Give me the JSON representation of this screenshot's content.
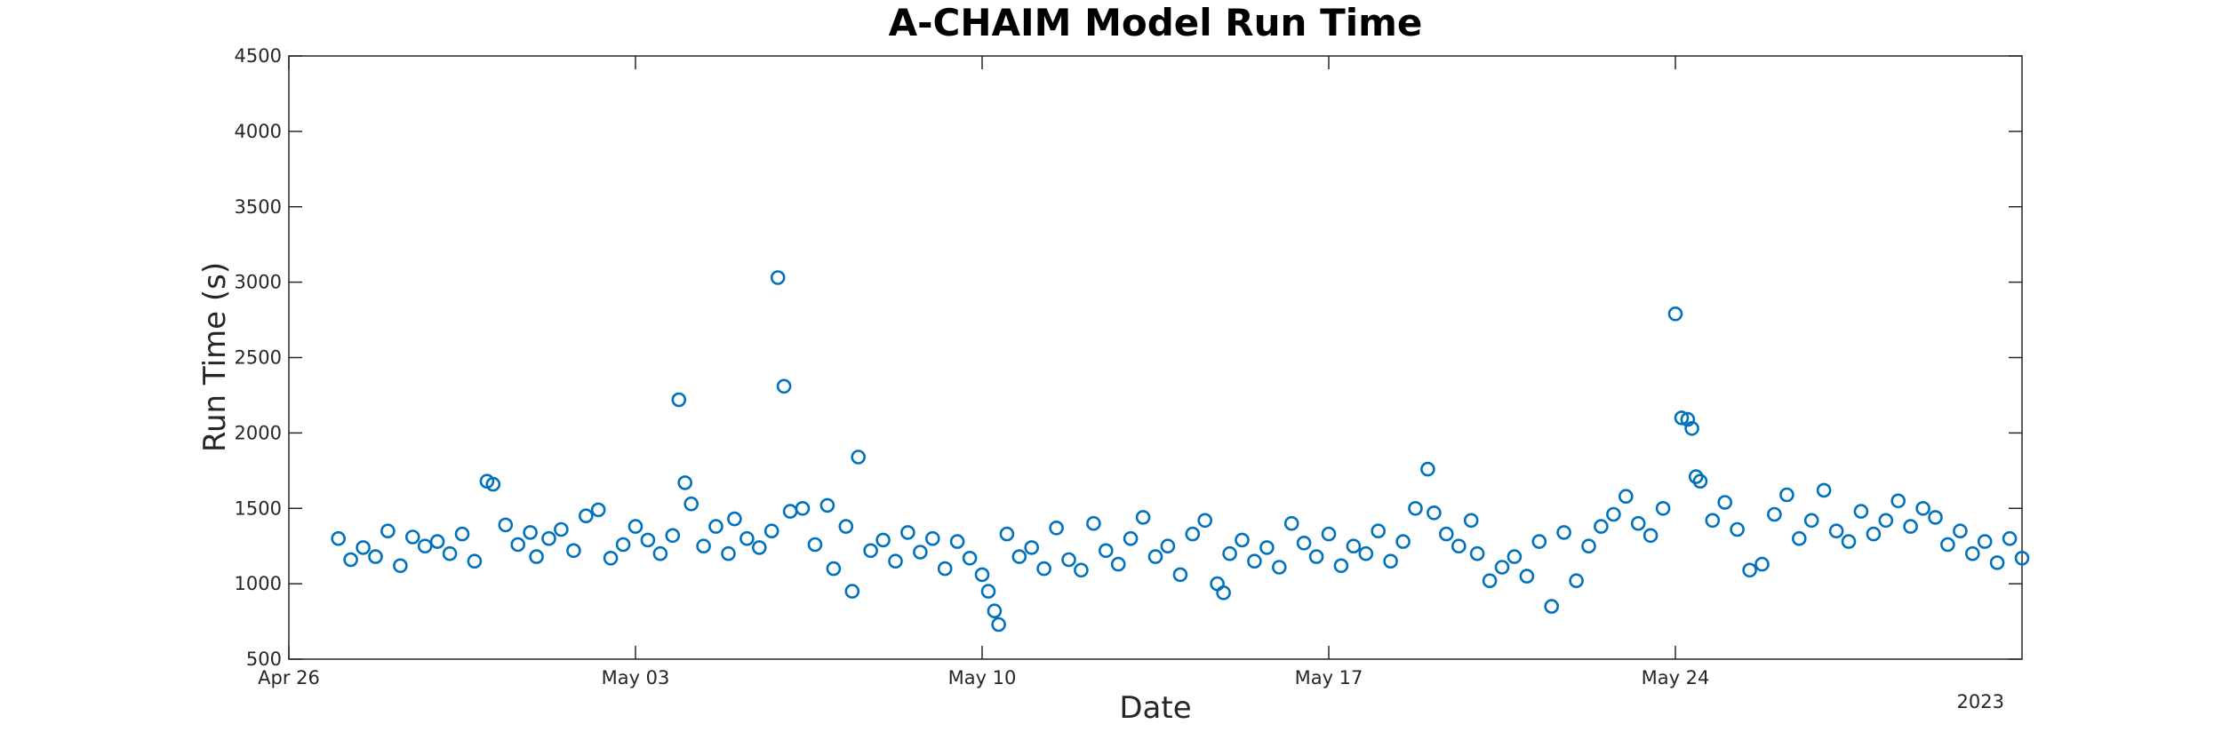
{
  "chart_data": {
    "type": "scatter",
    "title": "A-CHAIM Model Run Time",
    "xlabel": "Date",
    "ylabel": "Run Time (s)",
    "x_start": "2023-04-26",
    "x_end": "2023-05-31",
    "x_ticks": [
      "2023-04-26",
      "2023-05-03",
      "2023-05-10",
      "2023-05-17",
      "2023-05-24"
    ],
    "x_tick_labels": [
      "Apr 26",
      "May 03",
      "May 10",
      "May 17",
      "May 24"
    ],
    "year_label": "2023",
    "ylim": [
      500,
      4500
    ],
    "y_ticks": [
      500,
      1000,
      1500,
      2000,
      2500,
      3000,
      3500,
      4000,
      4500
    ],
    "y_tick_labels": [
      "500",
      "1000",
      "1500",
      "2000",
      "2500",
      "3000",
      "3500",
      "4000",
      "4500"
    ],
    "marker": "open circle",
    "color": "#0072BD",
    "grid": false,
    "series": [
      {
        "points": [
          [
            "2023-04-27 00:00",
            1300
          ],
          [
            "2023-04-27 06:00",
            1160
          ],
          [
            "2023-04-27 12:00",
            1240
          ],
          [
            "2023-04-27 18:00",
            1180
          ],
          [
            "2023-04-28 00:00",
            1350
          ],
          [
            "2023-04-28 06:00",
            1120
          ],
          [
            "2023-04-28 12:00",
            1310
          ],
          [
            "2023-04-28 18:00",
            1250
          ],
          [
            "2023-04-29 00:00",
            1280
          ],
          [
            "2023-04-29 06:00",
            1200
          ],
          [
            "2023-04-29 12:00",
            1330
          ],
          [
            "2023-04-29 18:00",
            1150
          ],
          [
            "2023-04-30 00:00",
            1680
          ],
          [
            "2023-04-30 03:00",
            1660
          ],
          [
            "2023-04-30 09:00",
            1390
          ],
          [
            "2023-04-30 15:00",
            1260
          ],
          [
            "2023-04-30 21:00",
            1340
          ],
          [
            "2023-05-01 00:00",
            1180
          ],
          [
            "2023-05-01 06:00",
            1300
          ],
          [
            "2023-05-01 12:00",
            1360
          ],
          [
            "2023-05-01 18:00",
            1220
          ],
          [
            "2023-05-02 00:00",
            1450
          ],
          [
            "2023-05-02 06:00",
            1490
          ],
          [
            "2023-05-02 12:00",
            1170
          ],
          [
            "2023-05-02 18:00",
            1260
          ],
          [
            "2023-05-03 00:00",
            1380
          ],
          [
            "2023-05-03 06:00",
            1290
          ],
          [
            "2023-05-03 12:00",
            1200
          ],
          [
            "2023-05-03 18:00",
            1320
          ],
          [
            "2023-05-03 21:00",
            2220
          ],
          [
            "2023-05-04 00:00",
            1670
          ],
          [
            "2023-05-04 03:00",
            1530
          ],
          [
            "2023-05-04 09:00",
            1250
          ],
          [
            "2023-05-04 15:00",
            1380
          ],
          [
            "2023-05-04 21:00",
            1200
          ],
          [
            "2023-05-05 00:00",
            1430
          ],
          [
            "2023-05-05 06:00",
            1300
          ],
          [
            "2023-05-05 12:00",
            1240
          ],
          [
            "2023-05-05 18:00",
            1350
          ],
          [
            "2023-05-05 21:00",
            3030
          ],
          [
            "2023-05-06 00:00",
            2310
          ],
          [
            "2023-05-06 03:00",
            1480
          ],
          [
            "2023-05-06 09:00",
            1500
          ],
          [
            "2023-05-06 15:00",
            1260
          ],
          [
            "2023-05-06 21:00",
            1520
          ],
          [
            "2023-05-07 00:00",
            1100
          ],
          [
            "2023-05-07 06:00",
            1380
          ],
          [
            "2023-05-07 09:00",
            950
          ],
          [
            "2023-05-07 12:00",
            1840
          ],
          [
            "2023-05-07 18:00",
            1220
          ],
          [
            "2023-05-08 00:00",
            1290
          ],
          [
            "2023-05-08 06:00",
            1150
          ],
          [
            "2023-05-08 12:00",
            1340
          ],
          [
            "2023-05-08 18:00",
            1210
          ],
          [
            "2023-05-09 00:00",
            1300
          ],
          [
            "2023-05-09 06:00",
            1100
          ],
          [
            "2023-05-09 12:00",
            1280
          ],
          [
            "2023-05-09 18:00",
            1170
          ],
          [
            "2023-05-10 00:00",
            1060
          ],
          [
            "2023-05-10 03:00",
            950
          ],
          [
            "2023-05-10 06:00",
            820
          ],
          [
            "2023-05-10 08:00",
            730
          ],
          [
            "2023-05-10 12:00",
            1330
          ],
          [
            "2023-05-10 18:00",
            1180
          ],
          [
            "2023-05-11 00:00",
            1240
          ],
          [
            "2023-05-11 06:00",
            1100
          ],
          [
            "2023-05-11 12:00",
            1370
          ],
          [
            "2023-05-11 18:00",
            1160
          ],
          [
            "2023-05-12 00:00",
            1090
          ],
          [
            "2023-05-12 06:00",
            1400
          ],
          [
            "2023-05-12 12:00",
            1220
          ],
          [
            "2023-05-12 18:00",
            1130
          ],
          [
            "2023-05-13 00:00",
            1300
          ],
          [
            "2023-05-13 06:00",
            1440
          ],
          [
            "2023-05-13 12:00",
            1180
          ],
          [
            "2023-05-13 18:00",
            1250
          ],
          [
            "2023-05-14 00:00",
            1060
          ],
          [
            "2023-05-14 06:00",
            1330
          ],
          [
            "2023-05-14 12:00",
            1420
          ],
          [
            "2023-05-14 18:00",
            1000
          ],
          [
            "2023-05-14 21:00",
            940
          ],
          [
            "2023-05-15 00:00",
            1200
          ],
          [
            "2023-05-15 06:00",
            1290
          ],
          [
            "2023-05-15 12:00",
            1150
          ],
          [
            "2023-05-15 18:00",
            1240
          ],
          [
            "2023-05-16 00:00",
            1110
          ],
          [
            "2023-05-16 06:00",
            1400
          ],
          [
            "2023-05-16 12:00",
            1270
          ],
          [
            "2023-05-16 18:00",
            1180
          ],
          [
            "2023-05-17 00:00",
            1330
          ],
          [
            "2023-05-17 06:00",
            1120
          ],
          [
            "2023-05-17 12:00",
            1250
          ],
          [
            "2023-05-17 18:00",
            1200
          ],
          [
            "2023-05-18 00:00",
            1350
          ],
          [
            "2023-05-18 06:00",
            1150
          ],
          [
            "2023-05-18 12:00",
            1280
          ],
          [
            "2023-05-18 18:00",
            1500
          ],
          [
            "2023-05-19 00:00",
            1760
          ],
          [
            "2023-05-19 03:00",
            1470
          ],
          [
            "2023-05-19 09:00",
            1330
          ],
          [
            "2023-05-19 15:00",
            1250
          ],
          [
            "2023-05-19 21:00",
            1420
          ],
          [
            "2023-05-20 00:00",
            1200
          ],
          [
            "2023-05-20 06:00",
            1020
          ],
          [
            "2023-05-20 12:00",
            1110
          ],
          [
            "2023-05-20 18:00",
            1180
          ],
          [
            "2023-05-21 00:00",
            1050
          ],
          [
            "2023-05-21 06:00",
            1280
          ],
          [
            "2023-05-21 12:00",
            850
          ],
          [
            "2023-05-21 18:00",
            1340
          ],
          [
            "2023-05-22 00:00",
            1020
          ],
          [
            "2023-05-22 06:00",
            1250
          ],
          [
            "2023-05-22 12:00",
            1380
          ],
          [
            "2023-05-22 18:00",
            1460
          ],
          [
            "2023-05-23 00:00",
            1580
          ],
          [
            "2023-05-23 06:00",
            1400
          ],
          [
            "2023-05-23 12:00",
            1320
          ],
          [
            "2023-05-23 18:00",
            1500
          ],
          [
            "2023-05-24 00:00",
            2790
          ],
          [
            "2023-05-24 03:00",
            2100
          ],
          [
            "2023-05-24 06:00",
            2090
          ],
          [
            "2023-05-24 08:00",
            2030
          ],
          [
            "2023-05-24 10:00",
            1710
          ],
          [
            "2023-05-24 12:00",
            1680
          ],
          [
            "2023-05-24 18:00",
            1420
          ],
          [
            "2023-05-25 00:00",
            1540
          ],
          [
            "2023-05-25 06:00",
            1360
          ],
          [
            "2023-05-25 12:00",
            1090
          ],
          [
            "2023-05-25 18:00",
            1130
          ],
          [
            "2023-05-26 00:00",
            1460
          ],
          [
            "2023-05-26 06:00",
            1590
          ],
          [
            "2023-05-26 12:00",
            1300
          ],
          [
            "2023-05-26 18:00",
            1420
          ],
          [
            "2023-05-27 00:00",
            1620
          ],
          [
            "2023-05-27 06:00",
            1350
          ],
          [
            "2023-05-27 12:00",
            1280
          ],
          [
            "2023-05-27 18:00",
            1480
          ],
          [
            "2023-05-28 00:00",
            1330
          ],
          [
            "2023-05-28 06:00",
            1420
          ],
          [
            "2023-05-28 12:00",
            1550
          ],
          [
            "2023-05-28 18:00",
            1380
          ],
          [
            "2023-05-29 00:00",
            1500
          ],
          [
            "2023-05-29 06:00",
            1440
          ],
          [
            "2023-05-29 12:00",
            1260
          ],
          [
            "2023-05-29 18:00",
            1350
          ],
          [
            "2023-05-30 00:00",
            1200
          ],
          [
            "2023-05-30 06:00",
            1280
          ],
          [
            "2023-05-30 12:00",
            1140
          ],
          [
            "2023-05-30 18:00",
            1300
          ],
          [
            "2023-05-31 00:00",
            1170
          ]
        ]
      }
    ]
  }
}
